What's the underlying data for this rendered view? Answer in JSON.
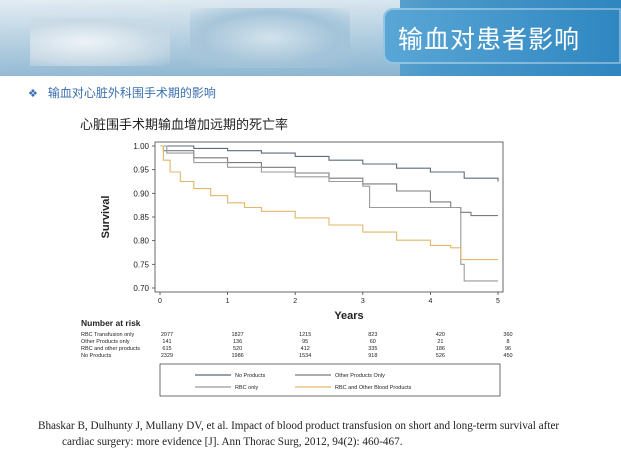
{
  "slide": {
    "title": "输血对患者影响",
    "bullet_mark": "❖",
    "bullet_text": "输血对心脏外科围手术期的影响",
    "subtitle": "心脏围手术期输血增加远期的死亡率",
    "citation_line1": "Bhaskar B, Dulhunty J, Mullany DV, et al. Impact of blood product transfusion on short and long-term survival after",
    "citation_line2": "cardiac surgery: more evidence [J]. Ann Thorac Surg, 2012, 94(2): 460-467."
  },
  "chart_data": {
    "type": "line",
    "ylabel": "Survival",
    "xlabel": "Years",
    "xlim": [
      0,
      5
    ],
    "ylim": [
      0.7,
      1.0
    ],
    "x_ticks": [
      "0",
      "1",
      "2",
      "3",
      "4",
      "5"
    ],
    "y_ticks": [
      "0.70",
      "0.75",
      "0.80",
      "0.85",
      "0.90",
      "0.95",
      "1.00"
    ],
    "colors": {
      "no_products": "#5a6b7d",
      "other_only": "#7b7b7b",
      "rbc_only": "#9a9a9a",
      "rbc_and_other": "#e2b76a"
    },
    "series": [
      {
        "name": "No Products",
        "key": "no_products",
        "x": [
          0,
          0.5,
          1,
          1.5,
          2,
          2.5,
          3,
          3.5,
          4,
          4.5,
          5
        ],
        "y": [
          1.0,
          0.995,
          0.99,
          0.985,
          0.978,
          0.97,
          0.962,
          0.953,
          0.945,
          0.932,
          0.925
        ]
      },
      {
        "name": "Other Products Only",
        "key": "other_only",
        "x": [
          0,
          0.05,
          0.5,
          1,
          1.5,
          2,
          2.5,
          3,
          3.5,
          4,
          4.3,
          4.45,
          4.6,
          5
        ],
        "y": [
          1.0,
          0.99,
          0.975,
          0.965,
          0.955,
          0.943,
          0.932,
          0.92,
          0.905,
          0.882,
          0.87,
          0.86,
          0.853,
          0.853
        ]
      },
      {
        "name": "RBC only",
        "key": "rbc_only",
        "x": [
          0,
          0.1,
          0.5,
          1,
          1.5,
          2,
          2.5,
          3,
          3.1,
          3.5,
          4,
          4.4,
          4.45,
          4.5,
          5
        ],
        "y": [
          1.0,
          0.985,
          0.965,
          0.955,
          0.945,
          0.935,
          0.925,
          0.915,
          0.87,
          0.87,
          0.87,
          0.87,
          0.75,
          0.715,
          0.715
        ]
      },
      {
        "name": "RBC and Other Blood Products",
        "key": "rbc_and_other",
        "x": [
          0,
          0.05,
          0.15,
          0.3,
          0.5,
          0.75,
          1,
          1.25,
          1.5,
          2,
          2.5,
          3,
          3.5,
          4,
          4.3,
          4.45,
          5
        ],
        "y": [
          1.0,
          0.97,
          0.945,
          0.925,
          0.91,
          0.895,
          0.88,
          0.87,
          0.862,
          0.848,
          0.833,
          0.818,
          0.801,
          0.79,
          0.785,
          0.76,
          0.76
        ]
      }
    ],
    "risk_table": {
      "title": "Number at risk",
      "rows": [
        {
          "label": "RBC Transfusion only",
          "values": [
            "2077",
            "1827",
            "1215",
            "823",
            "420",
            "360"
          ]
        },
        {
          "label": "Other Products only",
          "values": [
            "141",
            "136",
            "95",
            "60",
            "21",
            "8"
          ]
        },
        {
          "label": "RBC and other products",
          "values": [
            "615",
            "520",
            "412",
            "335",
            "186",
            "96"
          ]
        },
        {
          "label": "No Products",
          "values": [
            "2329",
            "1986",
            "1534",
            "918",
            "526",
            "450"
          ]
        }
      ]
    },
    "legend": [
      {
        "label": "No Products",
        "key": "no_products"
      },
      {
        "label": "Other Products Only",
        "key": "other_only"
      },
      {
        "label": "RBC only",
        "key": "rbc_only"
      },
      {
        "label": "RBC and Other Blood Products",
        "key": "rbc_and_other"
      }
    ]
  }
}
